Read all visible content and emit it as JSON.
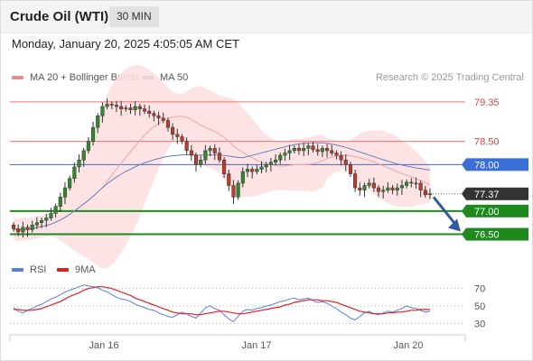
{
  "header": {
    "title": "Crude Oil (WTI)",
    "timeframe": "30 MIN"
  },
  "datetime": "Monday, January 20, 2025 4:05:05 AM CET",
  "legend": {
    "bollinger": {
      "label": "MA 20 + Bollinger Bands",
      "color": "#f08a8a"
    },
    "ma50": {
      "label": "MA 50",
      "color": "#3b5a9a"
    }
  },
  "copyright": "Research © 2025 Trading Central",
  "rsi_legend": {
    "rsi": {
      "label": "RSI",
      "color": "#5a7be0"
    },
    "ma9": {
      "label": "9MA",
      "color": "#e02020"
    }
  },
  "colors": {
    "up_candle": "#2e8b2e",
    "down_candle": "#c0392b",
    "support": "#1e8a1e",
    "pivot_blue": "#3a6fd8",
    "resistance": "#f07070",
    "band_fill": "#fde0e0",
    "arrow": "#2f5a9e",
    "current": "#333333"
  },
  "chart_data": [
    {
      "type": "candlestick",
      "ylim": [
        76.2,
        79.6
      ],
      "x_ticks": [
        "Jan 16",
        "Jan 17",
        "Jan 20"
      ],
      "levels": [
        {
          "value": 79.35,
          "label": "79.35",
          "kind": "resistance"
        },
        {
          "value": 78.5,
          "label": "78.50",
          "kind": "resistance"
        },
        {
          "value": 78.0,
          "label": "78.00",
          "kind": "pivot"
        },
        {
          "value": 77.37,
          "label": "77.37",
          "kind": "current"
        },
        {
          "value": 77.0,
          "label": "77.00",
          "kind": "support"
        },
        {
          "value": 76.5,
          "label": "76.50",
          "kind": "support"
        }
      ],
      "close": [
        76.62,
        76.55,
        76.65,
        76.6,
        76.7,
        76.75,
        76.8,
        76.85,
        76.95,
        77.1,
        77.3,
        77.5,
        77.7,
        77.95,
        78.1,
        78.3,
        78.5,
        78.8,
        79.05,
        79.25,
        79.3,
        79.28,
        79.25,
        79.2,
        79.22,
        79.18,
        79.25,
        79.2,
        79.15,
        79.1,
        79.05,
        79.0,
        78.95,
        78.8,
        78.65,
        78.6,
        78.5,
        78.3,
        78.2,
        78.0,
        78.1,
        78.3,
        78.35,
        78.25,
        78.1,
        77.8,
        77.55,
        77.3,
        77.6,
        77.85,
        77.9,
        77.85,
        77.9,
        77.95,
        78.0,
        78.05,
        78.1,
        78.2,
        78.25,
        78.3,
        78.35,
        78.3,
        78.35,
        78.4,
        78.32,
        78.28,
        78.35,
        78.3,
        78.25,
        78.2,
        78.1,
        78.0,
        77.8,
        77.5,
        77.45,
        77.55,
        77.6,
        77.5,
        77.42,
        77.45,
        77.5,
        77.45,
        77.5,
        77.55,
        77.62,
        77.6,
        77.6,
        77.45,
        77.35,
        77.37
      ],
      "open": [
        76.7,
        76.62,
        76.55,
        76.65,
        76.6,
        76.7,
        76.75,
        76.8,
        76.85,
        76.95,
        77.1,
        77.3,
        77.5,
        77.7,
        77.95,
        78.1,
        78.3,
        78.5,
        78.8,
        79.05,
        79.25,
        79.3,
        79.28,
        79.25,
        79.2,
        79.22,
        79.18,
        79.25,
        79.2,
        79.15,
        79.1,
        79.05,
        79.0,
        78.95,
        78.8,
        78.65,
        78.6,
        78.5,
        78.3,
        78.2,
        78.0,
        78.1,
        78.3,
        78.35,
        78.25,
        78.1,
        77.8,
        77.55,
        77.3,
        77.6,
        77.85,
        77.9,
        77.85,
        77.9,
        77.95,
        78.0,
        78.05,
        78.1,
        78.2,
        78.25,
        78.3,
        78.35,
        78.3,
        78.35,
        78.4,
        78.32,
        78.28,
        78.35,
        78.3,
        78.25,
        78.2,
        78.1,
        78.0,
        77.8,
        77.5,
        77.45,
        77.55,
        77.6,
        77.5,
        77.42,
        77.45,
        77.5,
        77.45,
        77.5,
        77.55,
        77.62,
        77.6,
        77.6,
        77.45,
        77.35
      ],
      "rsi_levels": [
        70,
        50,
        30
      ],
      "rsi_ylim": [
        20,
        80
      ],
      "rsi": [
        48,
        44,
        42,
        45,
        47,
        50,
        52,
        55,
        58,
        60,
        63,
        66,
        68,
        70,
        72,
        74,
        73,
        72,
        71,
        68,
        66,
        63,
        60,
        58,
        57,
        55,
        52,
        50,
        48,
        46,
        45,
        42,
        40,
        38,
        37,
        40,
        43,
        41,
        38,
        36,
        42,
        48,
        50,
        47,
        45,
        40,
        35,
        32,
        38,
        44,
        46,
        45,
        47,
        48,
        50,
        51,
        53,
        55,
        56,
        58,
        59,
        57,
        58,
        59,
        56,
        54,
        55,
        53,
        50,
        47,
        43,
        40,
        36,
        34,
        38,
        42,
        44,
        41,
        40,
        42,
        44,
        43,
        45,
        47,
        50,
        48,
        47,
        45,
        43,
        44
      ],
      "rsi_ma": [
        46,
        46,
        45,
        45,
        45,
        46,
        47,
        49,
        51,
        53,
        55,
        58,
        61,
        63,
        65,
        68,
        70,
        71,
        72,
        72,
        71,
        70,
        68,
        66,
        64,
        62,
        59,
        57,
        55,
        53,
        51,
        49,
        47,
        45,
        43,
        42,
        41,
        41,
        41,
        40,
        40,
        41,
        42,
        43,
        44,
        44,
        43,
        42,
        41,
        41,
        42,
        43,
        44,
        45,
        46,
        47,
        48,
        49,
        51,
        52,
        54,
        55,
        56,
        57,
        57,
        57,
        56,
        56,
        55,
        54,
        52,
        50,
        48,
        46,
        44,
        43,
        42,
        41,
        41,
        41,
        42,
        42,
        43,
        43,
        44,
        45,
        45,
        46,
        46,
        46
      ]
    }
  ]
}
